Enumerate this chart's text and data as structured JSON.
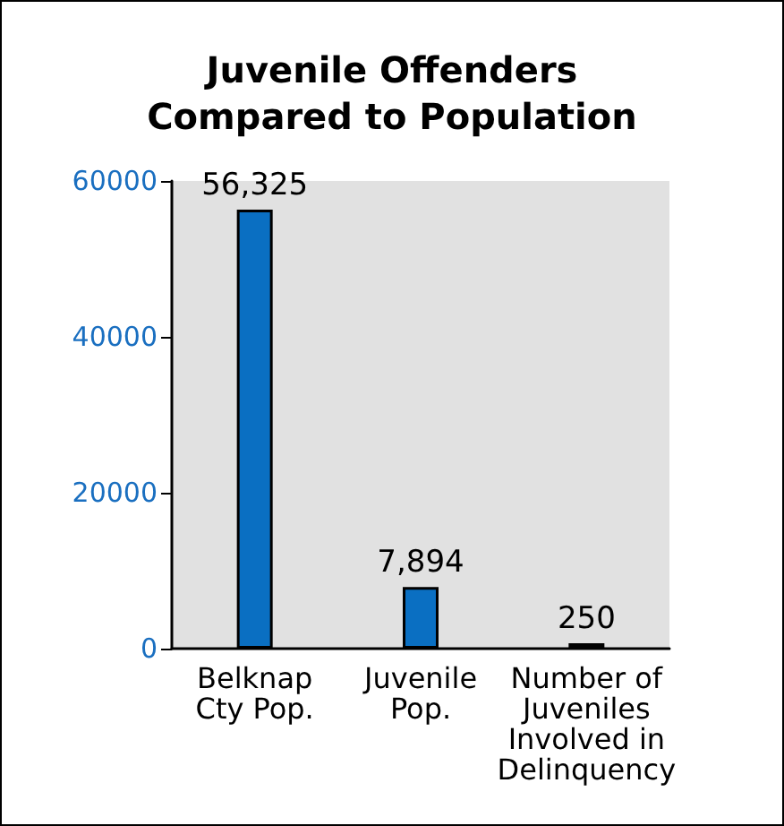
{
  "chart_data": {
    "type": "bar",
    "title": "Juvenile Offenders\nCompared to Population",
    "categories": [
      "Belknap\nCty Pop.",
      "Juvenile\nPop.",
      "Number of\nJuveniles\nInvolved in\nDelinquency"
    ],
    "values": [
      56325,
      7894,
      250
    ],
    "value_labels": [
      "56,325",
      "7,894",
      "250"
    ],
    "color": "#0a6fc2",
    "ylim": [
      0,
      60000
    ],
    "yticks": [
      0,
      20000,
      40000,
      60000
    ],
    "grid": false
  }
}
